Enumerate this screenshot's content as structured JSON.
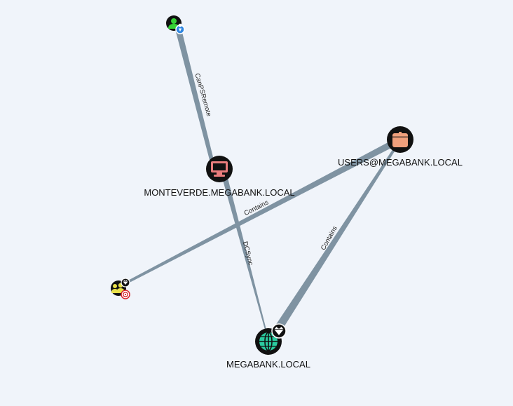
{
  "graph": {
    "nodes": {
      "user": {
        "label": "",
        "kind": "user",
        "color": "#35d135",
        "badge": "pin",
        "badge_color": "#2f86e0"
      },
      "monteverde": {
        "label": "MONTEVERDE.MEGABANK.LOCAL",
        "kind": "computer",
        "color": "#e87c7c"
      },
      "users_group": {
        "label": "USERS@MEGABANK.LOCAL",
        "kind": "container",
        "color": "#f0a07c"
      },
      "group": {
        "label": "",
        "kind": "group",
        "color": "#e8e04a",
        "badge": "target",
        "badge_color": "#d9262e",
        "extra_badge": "crown"
      },
      "domain": {
        "label": "MEGABANK.LOCAL",
        "kind": "domain",
        "color": "#2bcca0",
        "badge": "crown"
      }
    },
    "edges": [
      {
        "id": "canpsremote",
        "label": "CanPSRemote"
      },
      {
        "id": "contains_group",
        "label": "Contains"
      },
      {
        "id": "dcsync",
        "label": "DCSync"
      },
      {
        "id": "contains_domain",
        "label": "Contains"
      }
    ],
    "edge_color": "#7f93a2",
    "background": "#f0f4fa"
  }
}
